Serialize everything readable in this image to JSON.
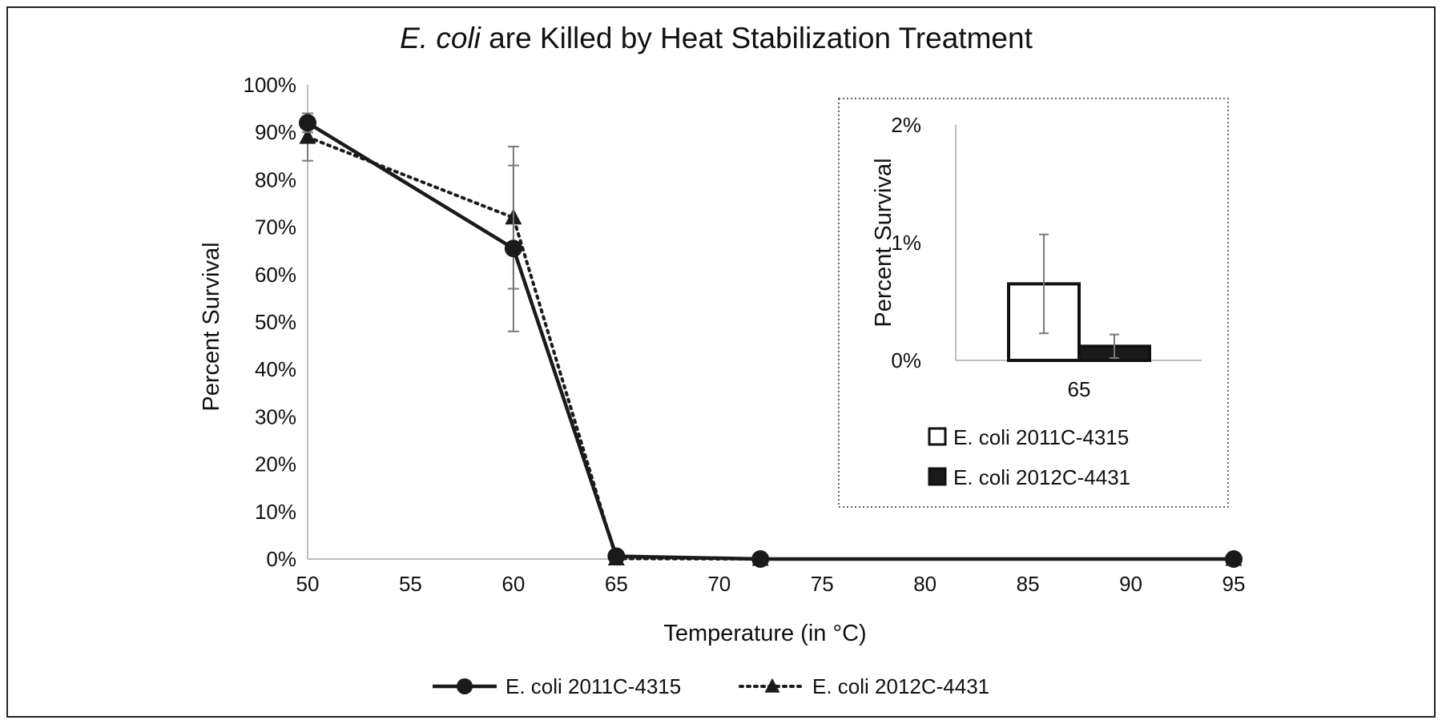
{
  "chart_data": [
    {
      "type": "line",
      "title_italic": "E. coli",
      "title_rest": " are Killed by Heat Stabilization Treatment",
      "xlabel": "Temperature (in °C)",
      "ylabel": "Percent Survival",
      "xlim": [
        50,
        95
      ],
      "ylim": [
        0,
        100
      ],
      "x_ticks": [
        50,
        55,
        60,
        65,
        70,
        75,
        80,
        85,
        90,
        95
      ],
      "y_ticks": [
        "0%",
        "10%",
        "20%",
        "30%",
        "40%",
        "50%",
        "60%",
        "70%",
        "80%",
        "90%",
        "100%"
      ],
      "grid": false,
      "legend_position": "bottom",
      "series": [
        {
          "name": "E. coli 2011C-4315",
          "marker": "circle",
          "line_style": "solid",
          "color": "#1a1a1a",
          "points": [
            {
              "x": 50,
              "y": 92,
              "err": 2
            },
            {
              "x": 60,
              "y": 65.5,
              "err": 17.5
            },
            {
              "x": 65,
              "y": 0.6,
              "err": 0
            },
            {
              "x": 72,
              "y": 0,
              "err": 0
            },
            {
              "x": 95,
              "y": 0,
              "err": 0
            }
          ]
        },
        {
          "name": "E. coli 2012C-4431",
          "marker": "triangle",
          "line_style": "dotted",
          "color": "#1a1a1a",
          "points": [
            {
              "x": 50,
              "y": 89,
              "err": 5
            },
            {
              "x": 60,
              "y": 72,
              "err": 15
            },
            {
              "x": 65,
              "y": 0.1,
              "err": 0
            },
            {
              "x": 72,
              "y": 0,
              "err": 0
            },
            {
              "x": 95,
              "y": 0,
              "err": 0
            }
          ]
        }
      ]
    },
    {
      "type": "bar",
      "inset": true,
      "categories": [
        "65"
      ],
      "ylabel": "Percent Survival",
      "ylim": [
        0,
        2
      ],
      "y_ticks": [
        "0%",
        "1%",
        "2%"
      ],
      "legend_position": "bottom",
      "series": [
        {
          "name": "E. coli 2011C-4315",
          "fill": "#ffffff",
          "stroke": "#111111",
          "values": [
            0.65
          ],
          "err": [
            0.42
          ]
        },
        {
          "name": "E. coli 2012C-4431",
          "fill": "#1a1a1a",
          "stroke": "#111111",
          "values": [
            0.12
          ],
          "err": [
            0.1
          ]
        }
      ]
    }
  ]
}
